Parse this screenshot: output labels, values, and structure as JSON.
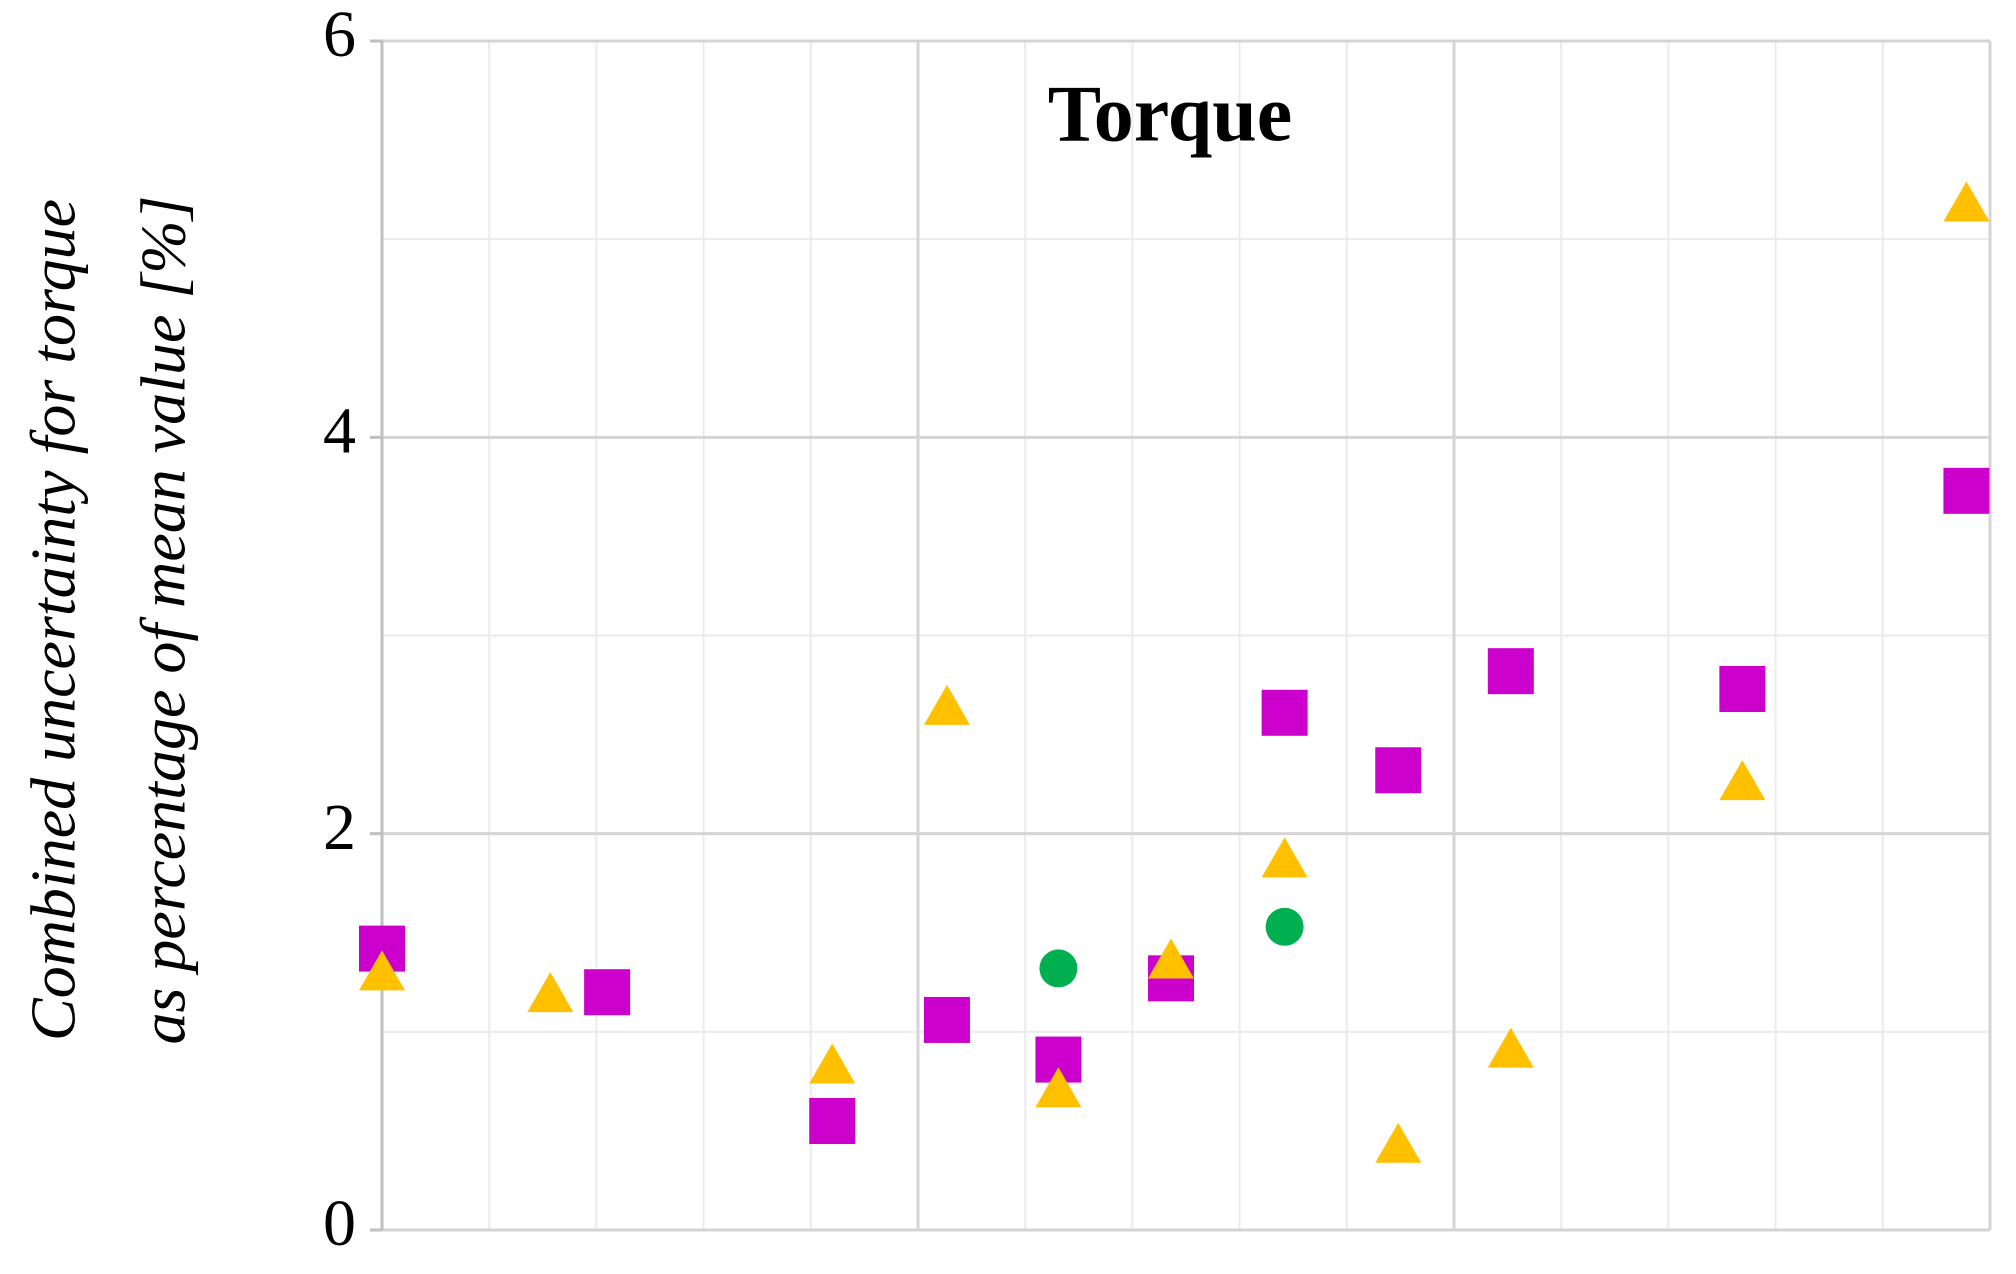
{
  "chart_data": {
    "type": "scatter",
    "title": "Torque",
    "y_label": [
      "Combined uncertainty for torque",
      "as percentage of mean value [%]"
    ],
    "xlim": [
      0,
      15
    ],
    "xticks": [
      0,
      5,
      10,
      15
    ],
    "x_minor_ticks": [
      1,
      2,
      3,
      4,
      6,
      7,
      8,
      9,
      11,
      12,
      13,
      14
    ],
    "ylim": [
      0,
      6
    ],
    "yticks": [
      0,
      2,
      4,
      6
    ],
    "y_minor_ticks": [
      1,
      3,
      5
    ],
    "grid": true,
    "series": [
      {
        "marker": "square",
        "color": "#cc00cc",
        "x": [
          0,
          2.1,
          4.2,
          5.27,
          6.31,
          7.36,
          8.42,
          9.48,
          10.53,
          12.69,
          14.78
        ],
        "values": [
          1.42,
          1.2,
          0.55,
          1.06,
          0.86,
          1.27,
          2.61,
          2.32,
          2.82,
          2.73,
          3.73
        ]
      },
      {
        "marker": "triangle",
        "color": "#ffc000",
        "x": [
          0,
          1.57,
          4.2,
          5.27,
          6.31,
          7.36,
          8.42,
          9.48,
          10.53,
          12.69,
          14.78
        ],
        "values": [
          1.3,
          1.19,
          0.83,
          2.64,
          0.71,
          1.36,
          1.87,
          0.43,
          0.91,
          2.26,
          5.18
        ]
      },
      {
        "marker": "circle",
        "color": "#00b050",
        "x": [
          6.31,
          8.42
        ],
        "values": [
          1.32,
          1.53
        ]
      }
    ]
  }
}
